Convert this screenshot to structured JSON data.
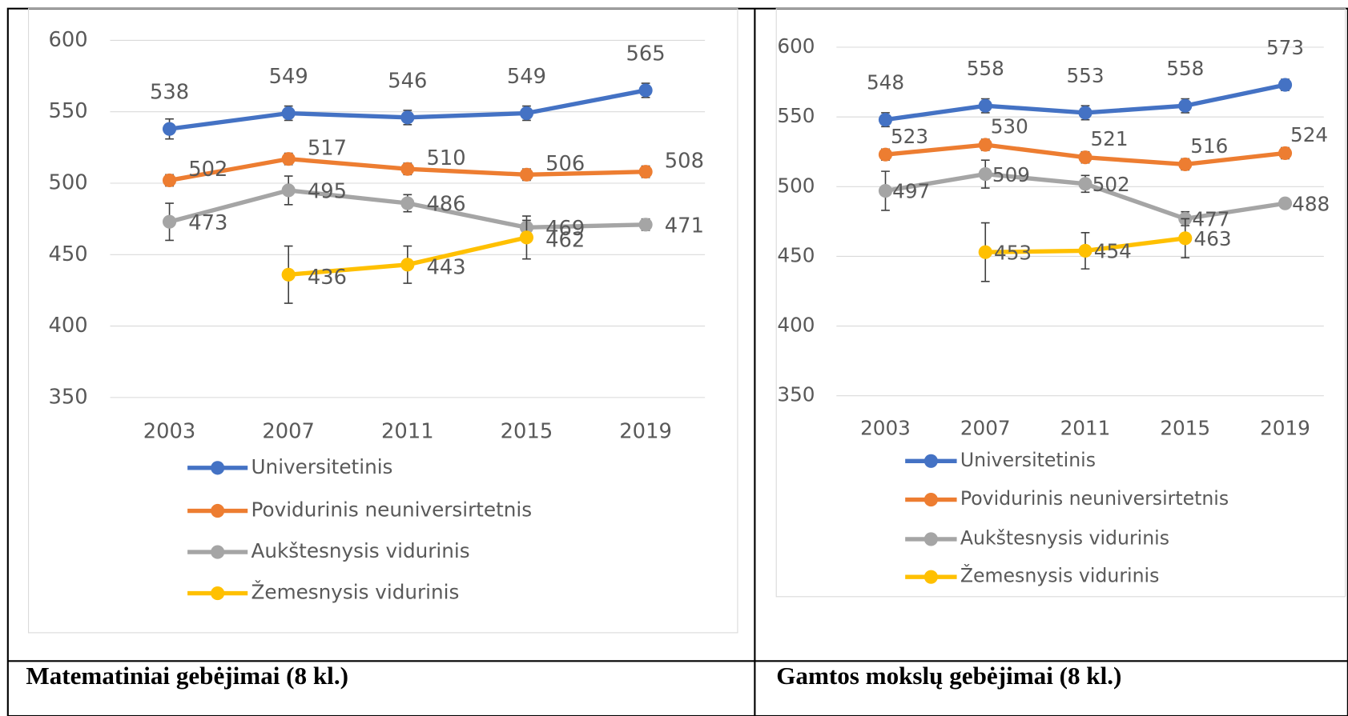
{
  "chart_data": [
    {
      "type": "line",
      "title": "Matematiniai gebėjimai (8 kl.)",
      "categories": [
        "2003",
        "2007",
        "2011",
        "2015",
        "2019"
      ],
      "ylim": [
        350,
        600
      ],
      "yticks": [
        350,
        400,
        450,
        500,
        550,
        600
      ],
      "grid": true,
      "series": [
        {
          "name": "Universitetinis",
          "color": "#4472c4",
          "values": [
            538,
            549,
            546,
            549,
            565
          ],
          "errors": [
            7,
            5,
            5,
            5,
            5
          ]
        },
        {
          "name": "Povidurinis neuniversirtetnis",
          "color": "#ed7d31",
          "values": [
            502,
            517,
            510,
            506,
            508
          ],
          "errors": [
            4,
            4,
            4,
            4,
            4
          ]
        },
        {
          "name": "Aukštesnysis vidurinis",
          "color": "#a5a5a5",
          "values": [
            473,
            495,
            486,
            469,
            471
          ],
          "errors": [
            13,
            10,
            6,
            5,
            4
          ]
        },
        {
          "name": "Žemesnysis vidurinis",
          "color": "#ffc000",
          "values": [
            null,
            436,
            443,
            462,
            null
          ],
          "errors": [
            null,
            20,
            13,
            15,
            null
          ]
        }
      ]
    },
    {
      "type": "line",
      "title": "Gamtos mokslų gebėjimai (8 kl.)",
      "categories": [
        "2003",
        "2007",
        "2011",
        "2015",
        "2019"
      ],
      "ylim": [
        350,
        600
      ],
      "yticks": [
        350,
        400,
        450,
        500,
        550,
        600
      ],
      "grid": true,
      "series": [
        {
          "name": "Universitetinis",
          "color": "#4472c4",
          "values": [
            548,
            558,
            553,
            558,
            573
          ],
          "errors": [
            5,
            5,
            5,
            5,
            4
          ]
        },
        {
          "name": "Povidurinis neuniversirtetnis",
          "color": "#ed7d31",
          "values": [
            523,
            530,
            521,
            516,
            524
          ],
          "errors": [
            4,
            4,
            4,
            4,
            4
          ]
        },
        {
          "name": "Aukštesnysis vidurinis",
          "color": "#a5a5a5",
          "values": [
            497,
            509,
            502,
            477,
            488
          ],
          "errors": [
            14,
            10,
            6,
            5,
            3
          ]
        },
        {
          "name": "Žemesnysis vidurinis",
          "color": "#ffc000",
          "values": [
            null,
            453,
            454,
            463,
            null
          ],
          "errors": [
            null,
            21,
            13,
            14,
            null
          ]
        }
      ]
    }
  ]
}
